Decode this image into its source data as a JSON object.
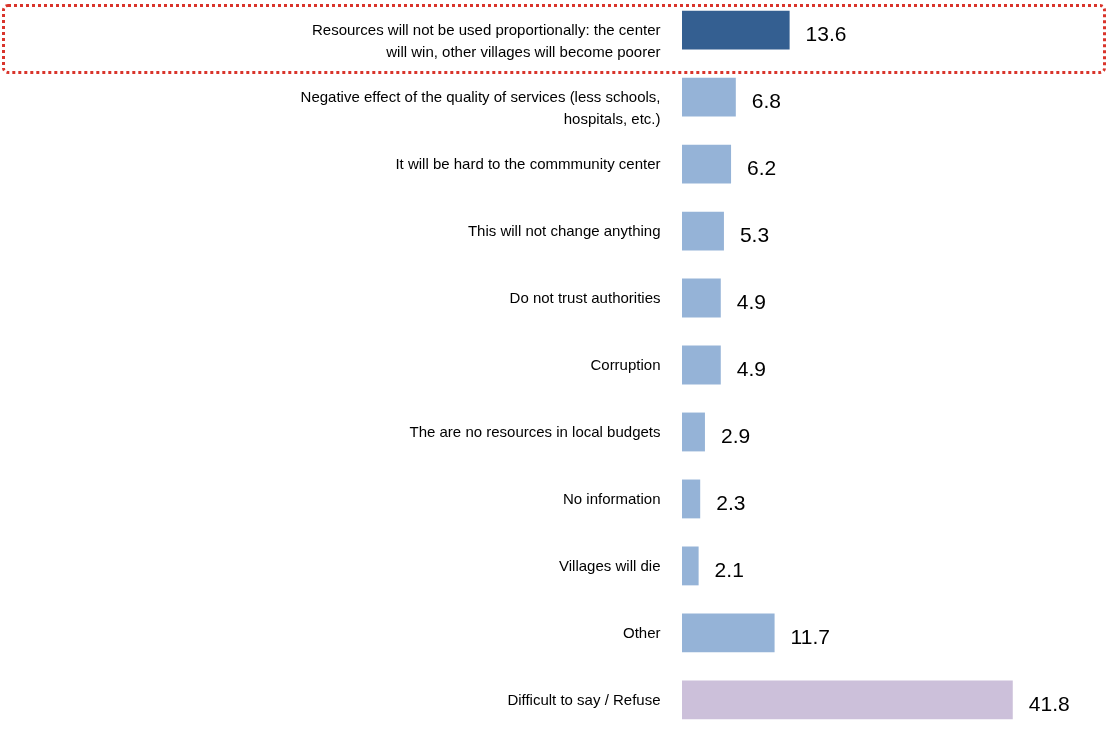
{
  "chart_data": {
    "type": "bar",
    "orientation": "horizontal",
    "data_labels": true,
    "categories": [
      "Resources will not be used proportionally: the center will win, other villages will become poorer",
      "Negative effect of the quality of services (less schools, hospitals, etc.)",
      "It will be hard to the commmunity center",
      "This will not change anything",
      "Do not trust authorities",
      "Corruption",
      "The are no resources in local budgets",
      "No information",
      "Villages will die",
      "Other",
      "Difficult to say / Refuse"
    ],
    "values": [
      13.6,
      6.8,
      6.2,
      5.3,
      4.9,
      4.9,
      2.9,
      2.3,
      2.1,
      11.7,
      41.8
    ],
    "colors": [
      "#345f91",
      "#95b3d7",
      "#95b3d7",
      "#95b3d7",
      "#95b3d7",
      "#95b3d7",
      "#95b3d7",
      "#95b3d7",
      "#95b3d7",
      "#95b3d7",
      "#ccc0da"
    ]
  }
}
